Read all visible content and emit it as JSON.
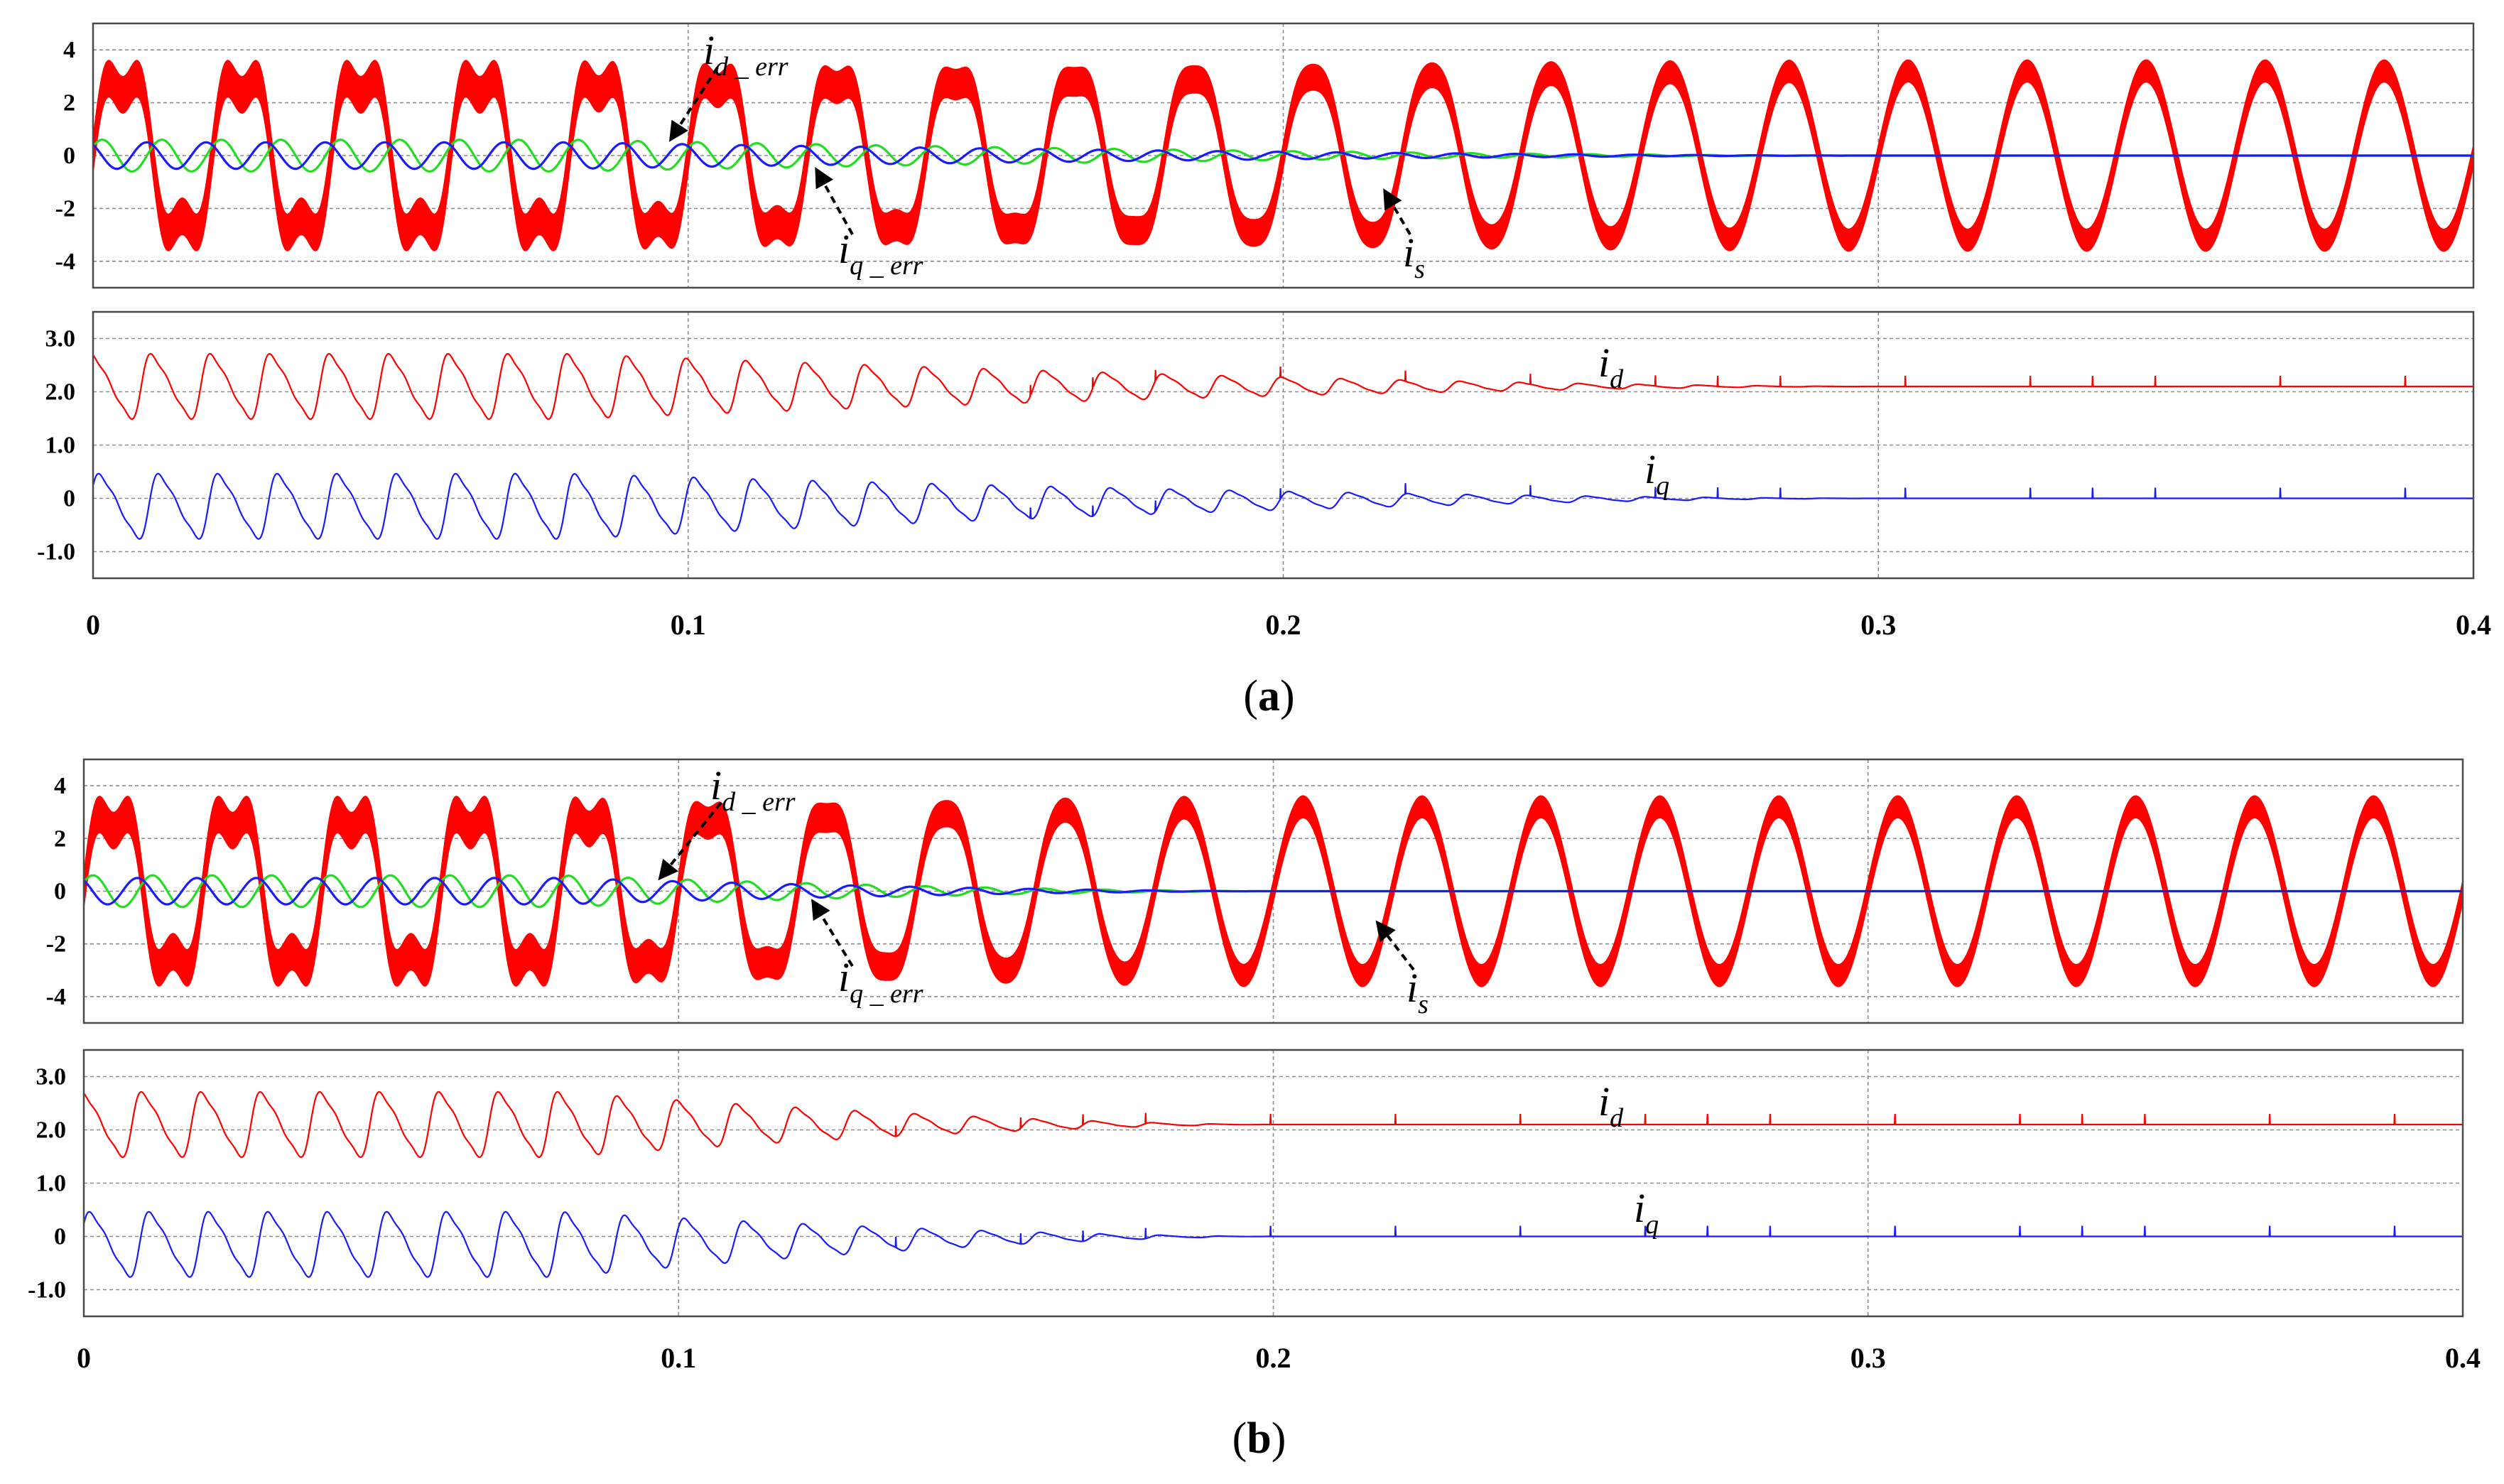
{
  "colors": {
    "is": "#ff0000",
    "id_err": "#22dd22",
    "iq_err": "#1a1aff",
    "id": "#ff0000",
    "iq": "#1a1aff",
    "grid": "#8c8c8c",
    "frame": "#4a4a4a"
  },
  "chart_data": [
    {
      "caption": {
        "open": "(",
        "letter": "a",
        "close": ")"
      },
      "type": "line",
      "xlabel": "",
      "xlim": [
        0,
        0.4
      ],
      "x_tick_labels": [
        "0",
        "0.1",
        "0.2",
        "0.3",
        "0.4"
      ],
      "x_tick_values": [
        0,
        0.1,
        0.2,
        0.3,
        0.4
      ],
      "transition": {
        "start": 0.08,
        "end": 0.3
      },
      "top": {
        "ylim": [
          -5,
          5
        ],
        "y_tick_labels": [
          "4",
          "2",
          "0",
          "-2",
          "-4"
        ],
        "y_tick_values": [
          4,
          2,
          0,
          -2,
          -4
        ],
        "series": [
          {
            "name": "is",
            "amplitude": 3.2,
            "ripple_band_start": 1.4,
            "ripple_band_end": 0.85,
            "cycles": 20
          },
          {
            "name": "id_err",
            "amplitude_start": 0.6,
            "amplitude_end": 0.0
          },
          {
            "name": "iq_err",
            "amplitude_start": 0.5,
            "amplitude_end": 0.0
          }
        ],
        "annotations": [
          {
            "main": "i",
            "sub": "d _ err"
          },
          {
            "main": "i",
            "sub": "q _ err"
          },
          {
            "main": "i",
            "sub": "s"
          }
        ]
      },
      "bottom": {
        "ylim": [
          -1.5,
          3.5
        ],
        "y_tick_labels": [
          "3.0",
          "2.0",
          "1.0",
          "0",
          "-1.0"
        ],
        "y_tick_values": [
          3,
          2,
          1,
          0,
          -1
        ],
        "series": [
          {
            "name": "id",
            "mean": 2.1,
            "oscillation_start": 0.55,
            "oscillation_end": 0.0,
            "period": 0.01
          },
          {
            "name": "iq",
            "mean": 0.0,
            "mean_start": -0.15,
            "oscillation_start": 0.55,
            "oscillation_end": 0.0,
            "period": 0.01
          }
        ],
        "annotations": [
          {
            "main": "i",
            "sub": "d"
          },
          {
            "main": "i",
            "sub": "q"
          }
        ]
      }
    },
    {
      "caption": {
        "open": "(",
        "letter": "b",
        "close": ")"
      },
      "type": "line",
      "xlabel": "",
      "xlim": [
        0,
        0.4
      ],
      "x_tick_labels": [
        "0",
        "0.1",
        "0.2",
        "0.3",
        "0.4"
      ],
      "x_tick_values": [
        0,
        0.1,
        0.2,
        0.3,
        0.4
      ],
      "transition": {
        "start": 0.08,
        "end": 0.2
      },
      "top": {
        "ylim": [
          -5,
          5
        ],
        "y_tick_labels": [
          "4",
          "2",
          "0",
          "-2",
          "-4"
        ],
        "y_tick_values": [
          4,
          2,
          0,
          -2,
          -4
        ],
        "series": [
          {
            "name": "is",
            "amplitude": 3.2,
            "ripple_band_start": 1.4,
            "ripple_band_end": 0.85,
            "cycles": 20
          },
          {
            "name": "id_err",
            "amplitude_start": 0.6,
            "amplitude_end": 0.0
          },
          {
            "name": "iq_err",
            "amplitude_start": 0.5,
            "amplitude_end": 0.0
          }
        ],
        "annotations": [
          {
            "main": "i",
            "sub": "d _ err"
          },
          {
            "main": "i",
            "sub": "q _ err"
          },
          {
            "main": "i",
            "sub": "s"
          }
        ]
      },
      "bottom": {
        "ylim": [
          -1.5,
          3.5
        ],
        "y_tick_labels": [
          "3.0",
          "2.0",
          "1.0",
          "0",
          "-1.0"
        ],
        "y_tick_values": [
          3,
          2,
          1,
          0,
          -1
        ],
        "series": [
          {
            "name": "id",
            "mean": 2.1,
            "oscillation_start": 0.55,
            "oscillation_end": 0.0,
            "period": 0.01
          },
          {
            "name": "iq",
            "mean": 0.0,
            "mean_start": -0.15,
            "oscillation_start": 0.55,
            "oscillation_end": 0.0,
            "period": 0.01
          }
        ],
        "annotations": [
          {
            "main": "i",
            "sub": "d"
          },
          {
            "main": "i",
            "sub": "q"
          }
        ]
      }
    }
  ]
}
